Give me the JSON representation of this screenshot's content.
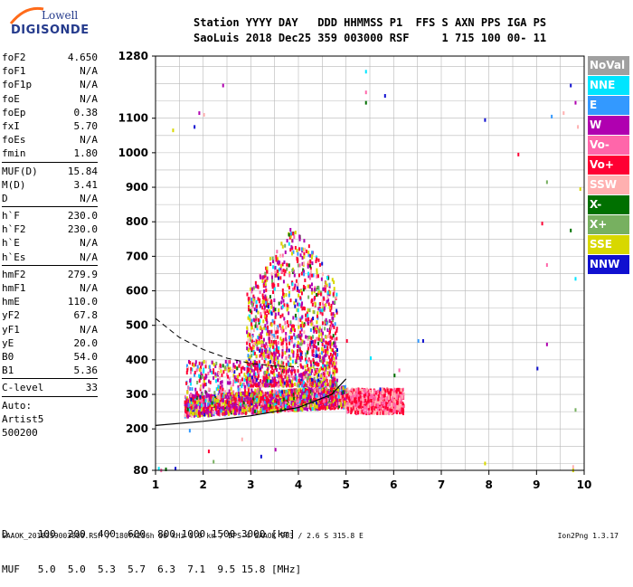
{
  "logo": {
    "line1": "Lowell",
    "line2": "DIGISONDE"
  },
  "header": {
    "cols_line": "Station YYYY DAY   DDD HHMMSS P1  FFS S AXN PPS IGA PS",
    "vals_line": "SaoLuis 2018 Dec25 359 003000 RSF     1 715 100 00- 11"
  },
  "params": {
    "groups": [
      [
        {
          "k": "foF2",
          "v": "4.650"
        },
        {
          "k": "foF1",
          "v": "N/A"
        },
        {
          "k": "foF1p",
          "v": "N/A"
        },
        {
          "k": "foE",
          "v": "N/A"
        },
        {
          "k": "foEp",
          "v": "0.38"
        },
        {
          "k": "fxI",
          "v": "5.70"
        },
        {
          "k": "foEs",
          "v": "N/A"
        },
        {
          "k": "fmin",
          "v": "1.80"
        }
      ],
      [
        {
          "k": "MUF(D)",
          "v": "15.84"
        },
        {
          "k": "M(D)",
          "v": "3.41"
        },
        {
          "k": "D",
          "v": "N/A"
        }
      ],
      [
        {
          "k": "h`F",
          "v": "230.0"
        },
        {
          "k": "h`F2",
          "v": "230.0"
        },
        {
          "k": "h`E",
          "v": "N/A"
        },
        {
          "k": "h`Es",
          "v": "N/A"
        }
      ],
      [
        {
          "k": "hmF2",
          "v": "279.9"
        },
        {
          "k": "hmF1",
          "v": "N/A"
        },
        {
          "k": "hmE",
          "v": "110.0"
        },
        {
          "k": "yF2",
          "v": "67.8"
        },
        {
          "k": "yF1",
          "v": "N/A"
        },
        {
          "k": "yE",
          "v": "20.0"
        },
        {
          "k": "B0",
          "v": "54.0"
        },
        {
          "k": "B1",
          "v": "5.36"
        }
      ],
      [
        {
          "k": "C-level",
          "v": "33"
        }
      ]
    ],
    "auto_lines": [
      "Auto:",
      "Artist5",
      "500200"
    ]
  },
  "legend": [
    {
      "label": "NoVal",
      "color": "#a0a0a0"
    },
    {
      "label": "NNE",
      "color": "#00e5ff"
    },
    {
      "label": "E",
      "color": "#3399ff"
    },
    {
      "label": "W",
      "color": "#b000b0"
    },
    {
      "label": "Vo-",
      "color": "#ff66aa"
    },
    {
      "label": "Vo+",
      "color": "#ff0033"
    },
    {
      "label": "SSW",
      "color": "#ffb0b0"
    },
    {
      "label": "X-",
      "color": "#007000"
    },
    {
      "label": "X+",
      "color": "#77b060"
    },
    {
      "label": "SSE",
      "color": "#d8d800"
    },
    {
      "label": "NNW",
      "color": "#1010d0"
    }
  ],
  "mufTable": {
    "d_line": "D     100  200  400  600  800 1000 1500 3000 [km]",
    "muf_line": "MUF   5.0  5.0  5.3  5.7  6.3  7.1  9.5 15.8 [MHz]"
  },
  "footer": {
    "left": "SAAOK_2018359003000.RSF / 180fx256h 50 kHz 5.0 km / DPS-4 SAAOK 903 / 2.6 S 315.8 E",
    "right": "Ion2Png 1.3.17"
  },
  "chart_data": {
    "type": "scatter",
    "x_ticks": [
      1,
      2,
      3,
      4,
      5,
      6,
      7,
      8,
      9,
      10
    ],
    "y_ticks": [
      80,
      200,
      300,
      400,
      500,
      600,
      700,
      800,
      900,
      1000,
      1100,
      1280
    ],
    "xlim": [
      1,
      10
    ],
    "ylim": [
      80,
      1280
    ],
    "grid": true,
    "cluster": {
      "f_start": 1.6,
      "f_end": 5.0,
      "h_base": 240,
      "h_top": 800
    },
    "trace_curve": {
      "f": [
        1,
        2,
        3,
        4,
        4.7,
        5.0
      ],
      "h": [
        210,
        222,
        238,
        262,
        300,
        345
      ]
    },
    "dashed_curve": {
      "f": [
        1,
        1.5,
        2,
        2.5,
        3,
        3.5,
        4
      ],
      "h": [
        520,
        465,
        430,
        405,
        390,
        382,
        380
      ]
    }
  }
}
